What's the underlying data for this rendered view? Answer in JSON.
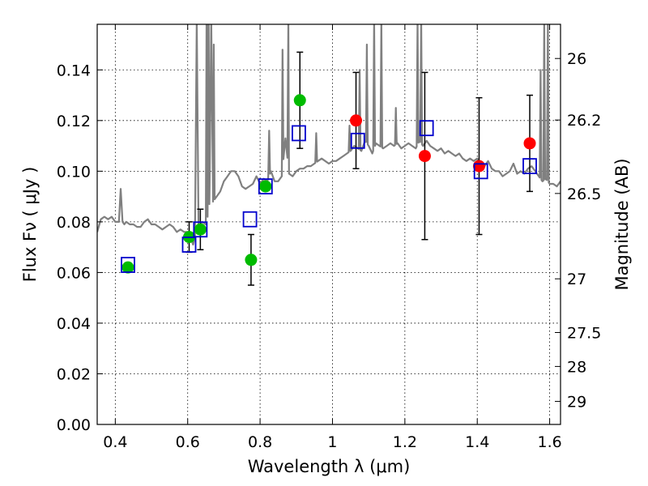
{
  "chart_data": {
    "type": "scatter",
    "xlabel": "Wavelength  λ (μm)",
    "ylabel": "Flux  Fν  ( μJy )",
    "y2label": "Magnitude (AB)",
    "xlim": [
      0.35,
      1.63
    ],
    "ylim": [
      0.0,
      0.158
    ],
    "grid": true,
    "xticks": [
      0.4,
      0.6,
      0.8,
      1.0,
      1.2,
      1.4,
      1.6
    ],
    "xtick_labels": [
      "0.4",
      "0.6",
      "0.8",
      "1",
      "1.2",
      "1.4",
      "1.6"
    ],
    "yticks": [
      0.0,
      0.02,
      0.04,
      0.06,
      0.08,
      0.1,
      0.12,
      0.14
    ],
    "ytick_labels": [
      "0.00",
      "0.02",
      "0.04",
      "0.06",
      "0.08",
      "0.10",
      "0.12",
      "0.14"
    ],
    "y2ticks": [
      {
        "label": "26",
        "flux": 0.1445
      },
      {
        "label": "26.2",
        "flux": 0.1202
      },
      {
        "label": "26.5",
        "flux": 0.0912
      },
      {
        "label": "27",
        "flux": 0.0575
      },
      {
        "label": "27.5",
        "flux": 0.0363
      },
      {
        "label": "28",
        "flux": 0.0229
      },
      {
        "label": "29",
        "flux": 0.0091
      }
    ],
    "colors": {
      "spectrum": "#808080",
      "green_points": "#00bb00",
      "red_points": "#ff0000",
      "model_squares": "#0000cc",
      "errorbars": "#000000"
    },
    "spectrum": {
      "name": "",
      "x": [
        0.35,
        0.36,
        0.37,
        0.38,
        0.39,
        0.4,
        0.41,
        0.415,
        0.42,
        0.425,
        0.43,
        0.44,
        0.45,
        0.46,
        0.47,
        0.48,
        0.49,
        0.5,
        0.51,
        0.52,
        0.53,
        0.54,
        0.55,
        0.56,
        0.57,
        0.58,
        0.59,
        0.6,
        0.605,
        0.61,
        0.615,
        0.62,
        0.625,
        0.63,
        0.64,
        0.65,
        0.652,
        0.655,
        0.658,
        0.66,
        0.665,
        0.67,
        0.68,
        0.69,
        0.7,
        0.71,
        0.72,
        0.73,
        0.74,
        0.75,
        0.76,
        0.77,
        0.78,
        0.79,
        0.8,
        0.81,
        0.82,
        0.83,
        0.84,
        0.85,
        0.86,
        0.87,
        0.88,
        0.89,
        0.9,
        0.91,
        0.92,
        0.93,
        0.94,
        0.95,
        0.96,
        0.97,
        0.98,
        0.99,
        1.0,
        1.01,
        1.02,
        1.03,
        1.04,
        1.05,
        1.06,
        1.07,
        1.08,
        1.09,
        1.1,
        1.11,
        1.12,
        1.13,
        1.14,
        1.15,
        1.16,
        1.17,
        1.18,
        1.19,
        1.2,
        1.21,
        1.22,
        1.23,
        1.24,
        1.25,
        1.26,
        1.27,
        1.28,
        1.29,
        1.3,
        1.31,
        1.32,
        1.33,
        1.34,
        1.35,
        1.36,
        1.37,
        1.38,
        1.39,
        1.4,
        1.41,
        1.42,
        1.43,
        1.44,
        1.45,
        1.46,
        1.47,
        1.48,
        1.49,
        1.5,
        1.51,
        1.52,
        1.53,
        1.54,
        1.55,
        1.56,
        1.57,
        1.58,
        1.59,
        1.6,
        1.61,
        1.62,
        1.63
      ],
      "y": [
        0.076,
        0.081,
        0.082,
        0.081,
        0.082,
        0.08,
        0.08,
        0.093,
        0.08,
        0.079,
        0.08,
        0.079,
        0.079,
        0.078,
        0.078,
        0.08,
        0.081,
        0.079,
        0.079,
        0.078,
        0.077,
        0.078,
        0.079,
        0.078,
        0.076,
        0.077,
        0.076,
        0.076,
        0.074,
        0.073,
        0.071,
        0.074,
        0.16,
        0.078,
        0.08,
        0.079,
        0.16,
        0.082,
        0.16,
        0.087,
        0.16,
        0.088,
        0.09,
        0.092,
        0.096,
        0.098,
        0.1,
        0.1,
        0.098,
        0.094,
        0.093,
        0.094,
        0.095,
        0.098,
        0.095,
        0.097,
        0.096,
        0.1,
        0.096,
        0.096,
        0.098,
        0.113,
        0.099,
        0.098,
        0.1,
        0.101,
        0.101,
        0.102,
        0.102,
        0.103,
        0.104,
        0.105,
        0.104,
        0.103,
        0.104,
        0.104,
        0.105,
        0.106,
        0.107,
        0.108,
        0.11,
        0.109,
        0.108,
        0.112,
        0.11,
        0.107,
        0.111,
        0.11,
        0.109,
        0.11,
        0.111,
        0.11,
        0.111,
        0.109,
        0.11,
        0.111,
        0.11,
        0.109,
        0.112,
        0.11,
        0.112,
        0.11,
        0.109,
        0.108,
        0.109,
        0.107,
        0.108,
        0.107,
        0.106,
        0.107,
        0.105,
        0.104,
        0.105,
        0.104,
        0.105,
        0.103,
        0.102,
        0.104,
        0.101,
        0.1,
        0.1,
        0.098,
        0.099,
        0.1,
        0.103,
        0.099,
        0.1,
        0.099,
        0.101,
        0.102,
        0.1,
        0.098,
        0.096,
        0.097,
        0.095,
        0.095,
        0.094,
        0.096
      ],
      "lines": [
        {
          "x": 0.653,
          "peak": 0.16
        },
        {
          "x": 0.658,
          "peak": 0.16
        },
        {
          "x": 0.672,
          "peak": 0.15
        },
        {
          "x": 0.825,
          "peak": 0.116
        },
        {
          "x": 0.862,
          "peak": 0.148
        },
        {
          "x": 0.878,
          "peak": 0.16
        },
        {
          "x": 0.955,
          "peak": 0.115
        },
        {
          "x": 1.047,
          "peak": 0.118
        },
        {
          "x": 1.075,
          "peak": 0.14
        },
        {
          "x": 1.095,
          "peak": 0.15
        },
        {
          "x": 1.115,
          "peak": 0.16
        },
        {
          "x": 1.135,
          "peak": 0.16
        },
        {
          "x": 1.175,
          "peak": 0.125
        },
        {
          "x": 1.235,
          "peak": 0.16
        },
        {
          "x": 1.245,
          "peak": 0.16
        },
        {
          "x": 1.575,
          "peak": 0.14
        },
        {
          "x": 1.585,
          "peak": 0.16
        },
        {
          "x": 1.595,
          "peak": 0.16
        }
      ]
    },
    "green_points": [
      {
        "x": 0.435,
        "y": 0.062
      },
      {
        "x": 0.604,
        "y": 0.074,
        "yerr": 0.006
      },
      {
        "x": 0.635,
        "y": 0.077,
        "yerr": 0.008
      },
      {
        "x": 0.775,
        "y": 0.065,
        "yerr": 0.01
      },
      {
        "x": 0.815,
        "y": 0.094
      },
      {
        "x": 0.91,
        "y": 0.128,
        "yerr": 0.019
      }
    ],
    "red_points": [
      {
        "x": 1.065,
        "y": 0.12,
        "yerr": 0.019
      },
      {
        "x": 1.255,
        "y": 0.106,
        "yerr": 0.033
      },
      {
        "x": 1.405,
        "y": 0.102,
        "yerr": 0.027
      },
      {
        "x": 1.545,
        "y": 0.111,
        "yerr": 0.019
      }
    ],
    "model_squares": [
      {
        "x": 0.435,
        "y": 0.063
      },
      {
        "x": 0.604,
        "y": 0.071
      },
      {
        "x": 0.635,
        "y": 0.077
      },
      {
        "x": 0.772,
        "y": 0.081
      },
      {
        "x": 0.815,
        "y": 0.094
      },
      {
        "x": 0.907,
        "y": 0.115
      },
      {
        "x": 1.07,
        "y": 0.112
      },
      {
        "x": 1.26,
        "y": 0.117
      },
      {
        "x": 1.41,
        "y": 0.1
      },
      {
        "x": 1.545,
        "y": 0.102
      }
    ]
  }
}
